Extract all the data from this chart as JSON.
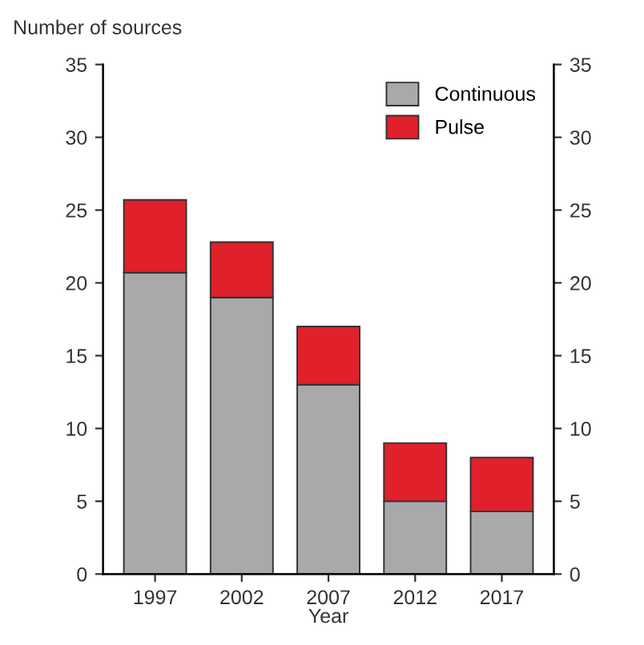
{
  "chart_data": {
    "type": "bar",
    "stacked": true,
    "ylabel": "Number of sources",
    "xlabel": "Year",
    "categories": [
      "1997",
      "2002",
      "2007",
      "2012",
      "2017"
    ],
    "series": [
      {
        "name": "Continuous",
        "color": "#a9a9ab",
        "values": [
          20.7,
          19,
          13,
          5,
          4.3
        ]
      },
      {
        "name": "Pulse",
        "color": "#e0202a",
        "values": [
          5,
          3.8,
          4,
          4,
          3.7
        ]
      }
    ],
    "ylim": [
      0,
      35
    ],
    "yticks": [
      0,
      5,
      10,
      15,
      20,
      25,
      30,
      35
    ],
    "y2lim": [
      0,
      35
    ],
    "y2ticks": [
      0,
      5,
      10,
      15,
      20,
      25,
      30,
      35
    ],
    "legend": "top right",
    "grid": false
  }
}
